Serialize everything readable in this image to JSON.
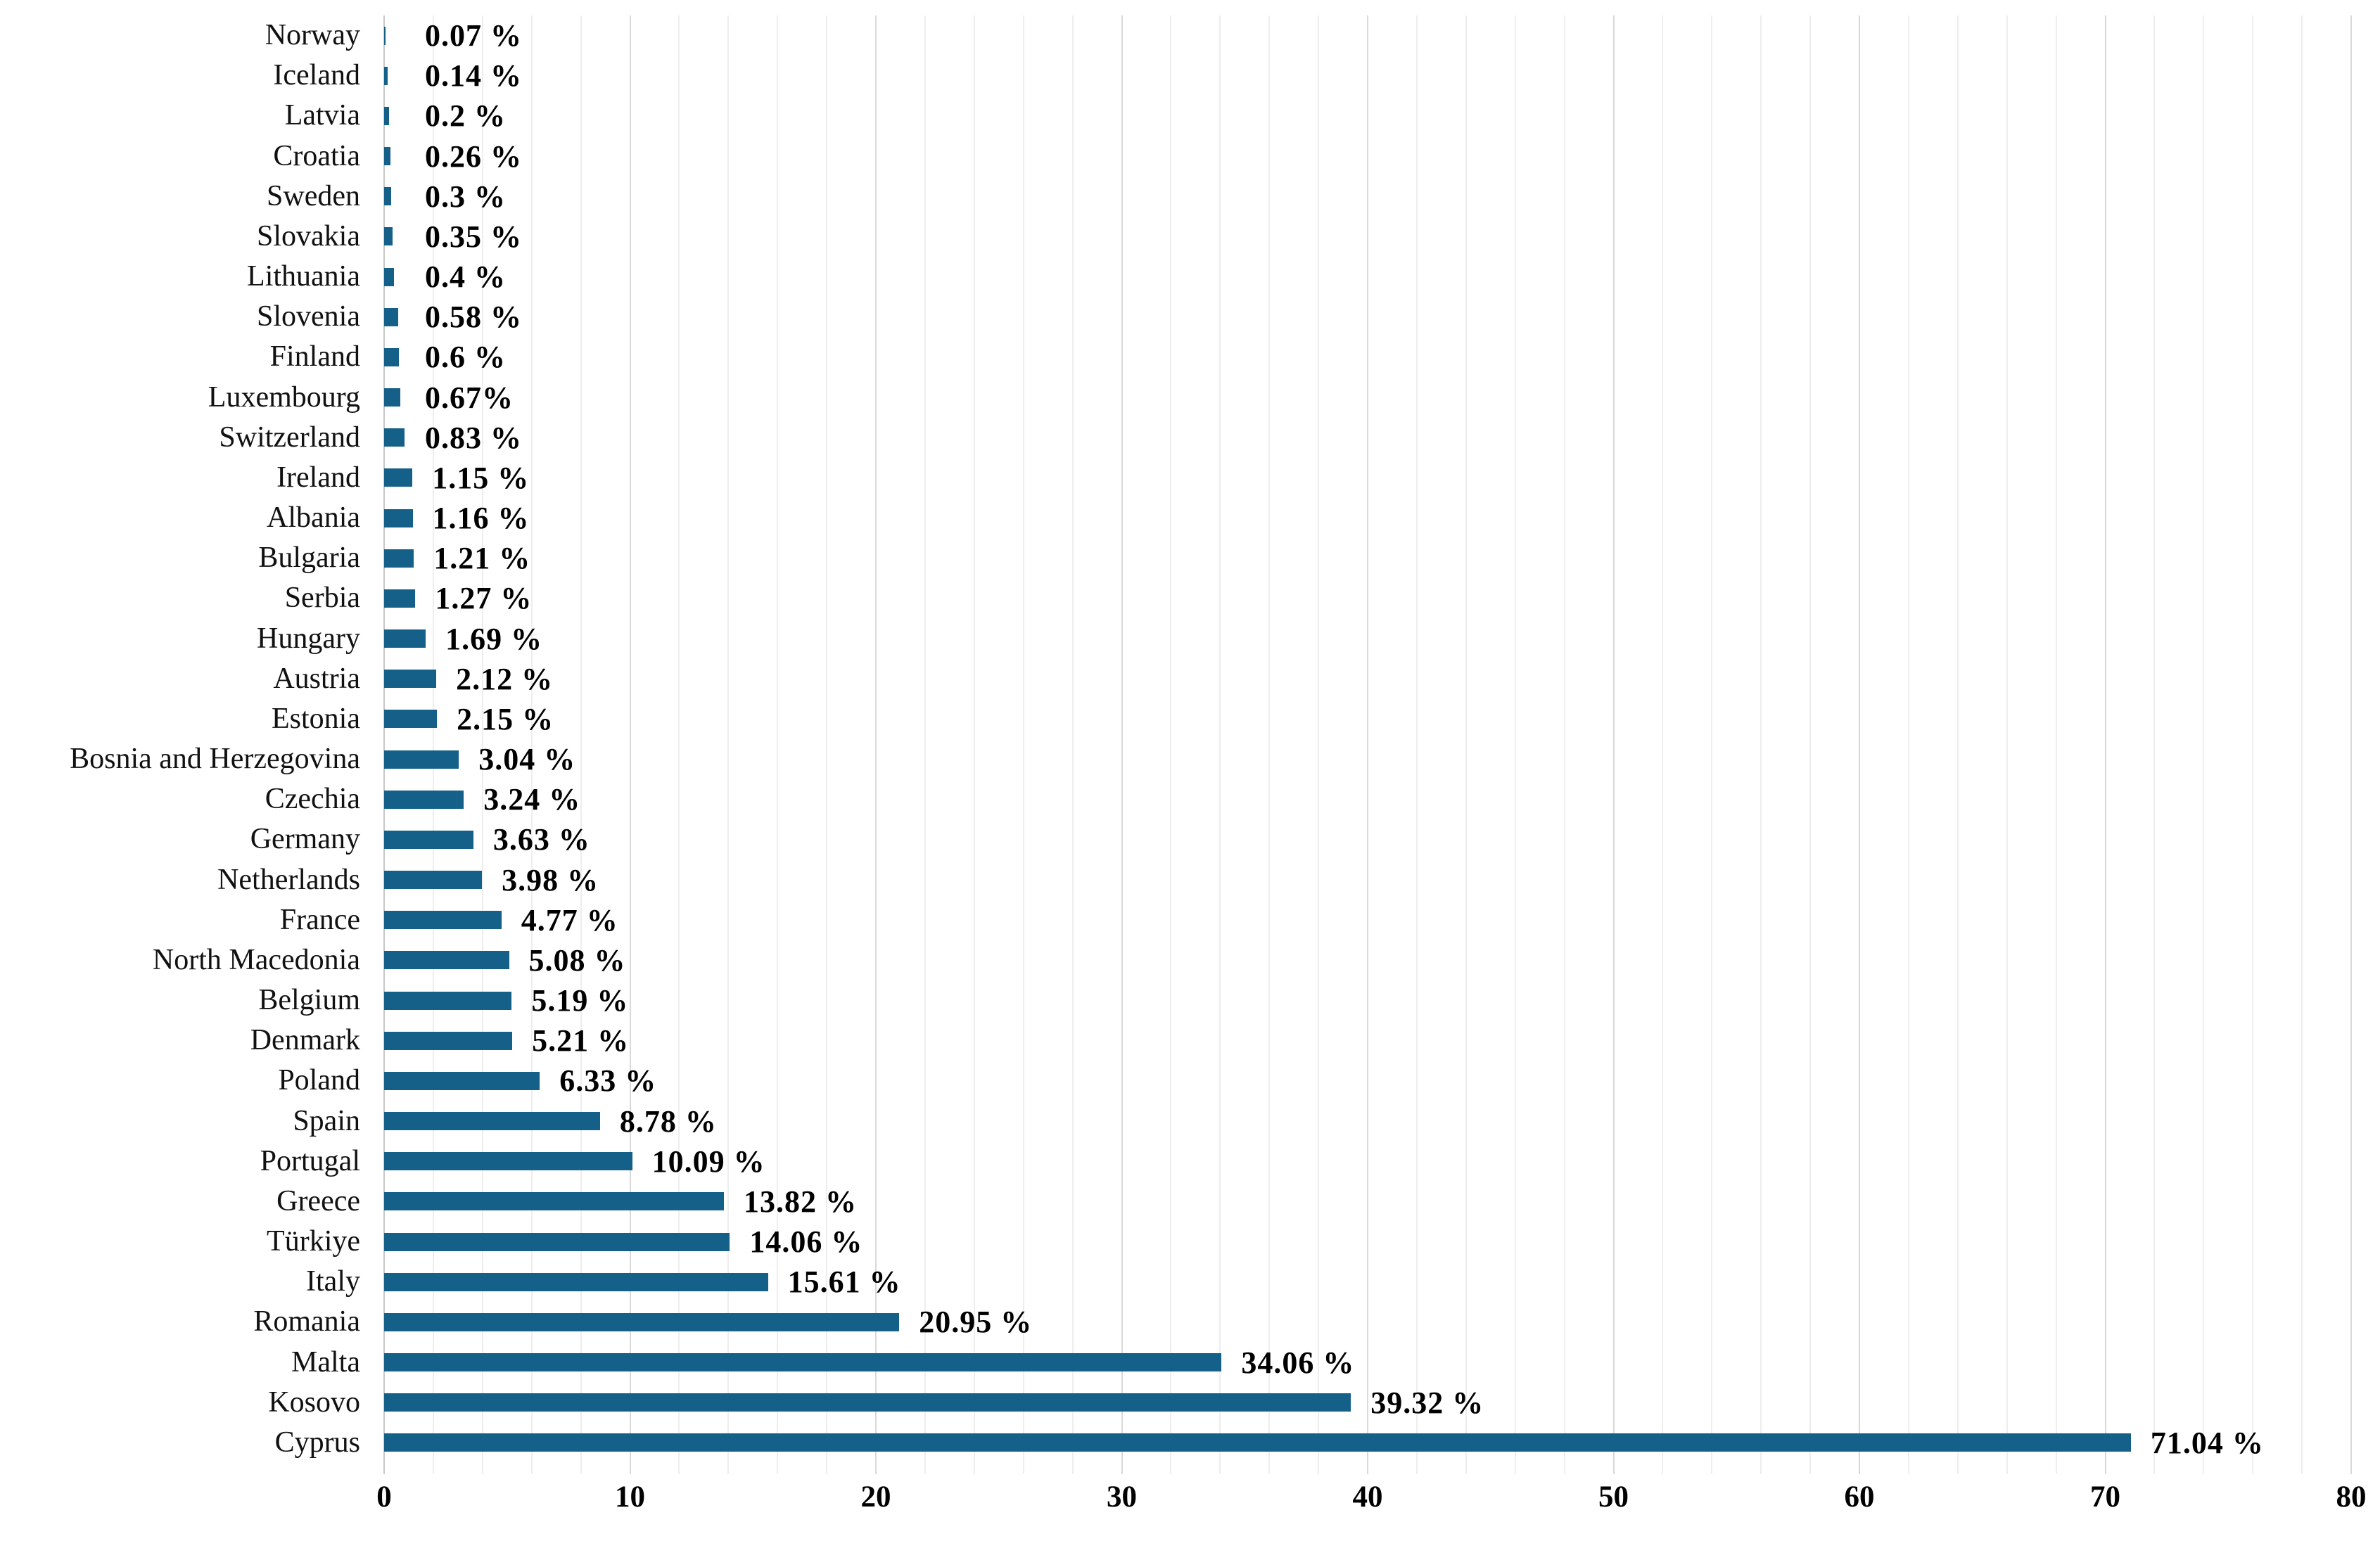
{
  "chart_data": {
    "type": "bar",
    "orientation": "horizontal",
    "title": "",
    "xlabel": "",
    "ylabel": "",
    "categories": [
      "Norway",
      "Iceland",
      "Latvia",
      "Croatia",
      "Sweden",
      "Slovakia",
      "Lithuania",
      "Slovenia",
      "Finland",
      "Luxembourg",
      "Switzerland",
      "Ireland",
      "Albania",
      "Bulgaria",
      "Serbia",
      "Hungary",
      "Austria",
      "Estonia",
      "Bosnia and Herzegovina",
      "Czechia",
      "Germany",
      "Netherlands",
      "France",
      "North Macedonia",
      "Belgium",
      "Denmark",
      "Poland",
      "Spain",
      "Portugal",
      "Greece",
      "Türkiye",
      "Italy",
      "Romania",
      "Malta",
      "Kosovo",
      "Cyprus"
    ],
    "values": [
      0.07,
      0.14,
      0.2,
      0.26,
      0.3,
      0.35,
      0.4,
      0.58,
      0.6,
      0.67,
      0.83,
      1.15,
      1.16,
      1.21,
      1.27,
      1.69,
      2.12,
      2.15,
      3.04,
      3.24,
      3.63,
      3.98,
      4.77,
      5.08,
      5.19,
      5.21,
      6.33,
      8.78,
      10.09,
      13.82,
      14.06,
      15.61,
      20.95,
      34.06,
      39.32,
      71.04
    ],
    "value_labels": [
      "0.07 %",
      "0.14 %",
      "0.2 %",
      "0.26 %",
      "0.3 %",
      "0.35 %",
      "0.4 %",
      "0.58 %",
      "0.6 %",
      "0.67%",
      "0.83 %",
      "1.15 %",
      "1.16 %",
      "1.21 %",
      "1.27 %",
      "1.69 %",
      "2.12 %",
      "2.15 %",
      "3.04 %",
      "3.24 %",
      "3.63 %",
      "3.98 %",
      "4.77 %",
      "5.08 %",
      "5.19 %",
      "5.21 %",
      "6.33 %",
      "8.78 %",
      "10.09 %",
      "13.82 %",
      "14.06 %",
      "15.61 %",
      "20.95 %",
      "34.06 %",
      "39.32 %",
      "71.04 %"
    ],
    "xlim": [
      0,
      80
    ],
    "x_tick_labels": [
      "0",
      "10",
      "20",
      "30",
      "40",
      "50",
      "60",
      "70",
      "80"
    ],
    "x_tick_step": 10,
    "minor_grid_step": 2,
    "grid": true,
    "legend": false,
    "bar_color": "#156088",
    "minor_grid_color": "#eeeeee",
    "major_grid_color": "#d9d9d9",
    "text_color": "#000000"
  }
}
